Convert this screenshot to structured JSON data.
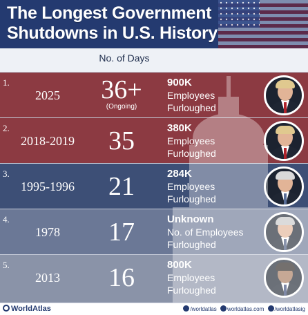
{
  "title": "The Longest  Government Shutdowns in U.S. History",
  "column_header": "No. of Days",
  "rows": [
    {
      "rank": "1.",
      "years": "2025",
      "days": "36+",
      "note": "(Ongoing)",
      "count": "900K",
      "line1": "Employees",
      "line2": "Furloughed",
      "color": "#8c3a42",
      "tie": "#b0232b",
      "hair": "#e0c98f"
    },
    {
      "rank": "2.",
      "years": "2018-2019",
      "days": "35",
      "note": "",
      "count": "380K",
      "line1": "Employees",
      "line2": "Furloughed",
      "color": "#8c3a42",
      "tie": "#b0232b",
      "hair": "#e0c98f"
    },
    {
      "rank": "3.",
      "years": "1995-1996",
      "days": "21",
      "note": "",
      "count": "284K",
      "line1": "Employees",
      "line2": "Furloughed",
      "color": "#3d4f76",
      "tie": "#5a6f98",
      "hair": "#d9d9d9"
    },
    {
      "rank": "4.",
      "years": "1978",
      "days": "17",
      "note": "",
      "count": "Unknown",
      "line1": "No. of Employees",
      "line2": "Furloughed",
      "color": "#6b7896",
      "tie": "#4a5a80",
      "hair": "#c9c9c9"
    },
    {
      "rank": "5.",
      "years": "2013",
      "days": "16",
      "note": "",
      "count": "800K",
      "line1": "Employees",
      "line2": "Furloughed",
      "color": "#8a93a8",
      "tie": "#3a4a78",
      "hair": "#2a2320"
    }
  ],
  "footer": {
    "brand": "WorldAtlas",
    "handle1": "/worldatlas",
    "handle2": "worldatlas.com",
    "handle3": "/worldatlasig"
  }
}
